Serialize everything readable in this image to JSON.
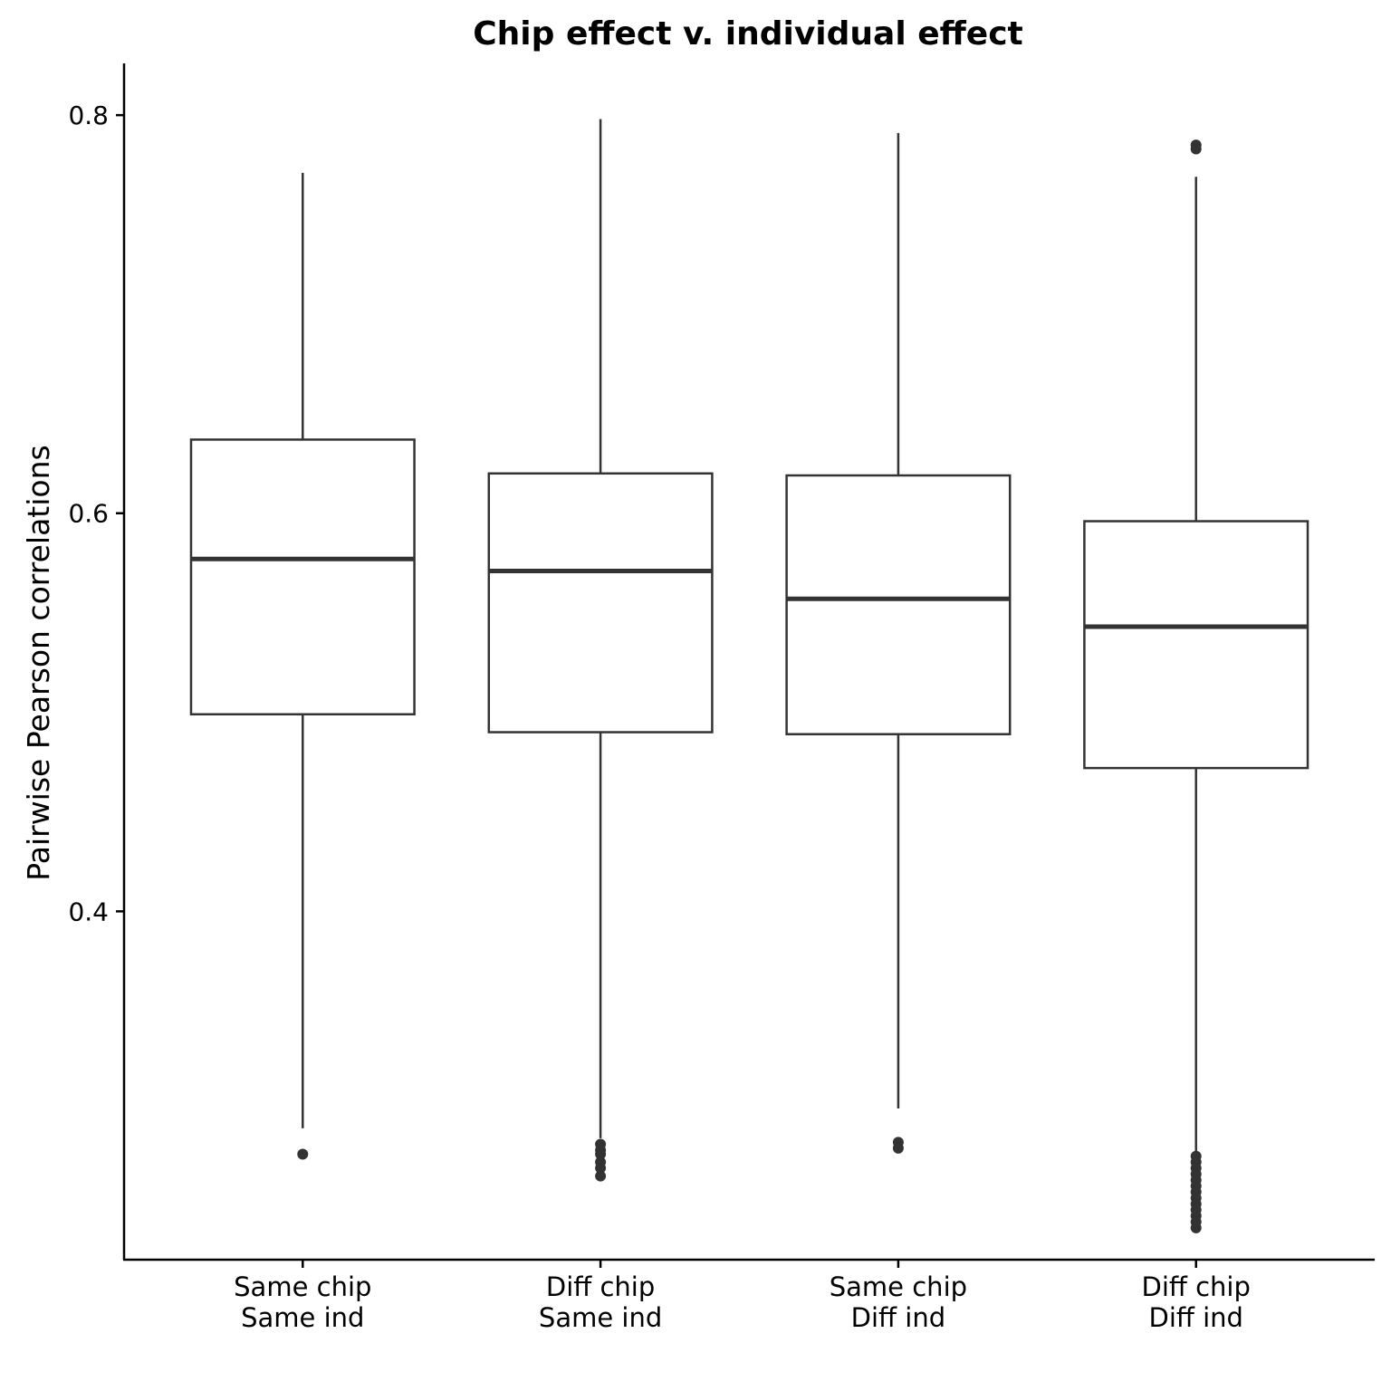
{
  "chart_data": {
    "type": "boxplot",
    "title": "Chip effect v. individual effect",
    "xlabel": "",
    "ylabel": "Pairwise Pearson correlations",
    "ylim": [
      0.225,
      0.826
    ],
    "yticks": [
      0.4,
      0.6,
      0.8
    ],
    "ytick_labels": [
      "0.4",
      "0.6",
      "0.8"
    ],
    "grid": false,
    "legend": "none",
    "colors": {
      "box_stroke": "#333333",
      "box_fill": "#ffffff",
      "axis": "#000000"
    },
    "groups": [
      {
        "label_line1": "Same chip",
        "label_line2": "Same ind",
        "whisker_low": 0.291,
        "q1": 0.499,
        "median": 0.577,
        "q3": 0.637,
        "whisker_high": 0.771,
        "outliers": [
          0.278
        ]
      },
      {
        "label_line1": "Diff chip",
        "label_line2": "Same ind",
        "whisker_low": 0.286,
        "q1": 0.49,
        "median": 0.571,
        "q3": 0.62,
        "whisker_high": 0.798,
        "outliers": [
          0.283,
          0.28,
          0.278,
          0.274,
          0.271,
          0.267
        ]
      },
      {
        "label_line1": "Same chip",
        "label_line2": "Diff ind",
        "whisker_low": 0.301,
        "q1": 0.489,
        "median": 0.557,
        "q3": 0.619,
        "whisker_high": 0.791,
        "outliers": [
          0.281,
          0.284
        ]
      },
      {
        "label_line1": "Diff chip",
        "label_line2": "Diff ind",
        "whisker_low": 0.278,
        "q1": 0.472,
        "median": 0.543,
        "q3": 0.596,
        "whisker_high": 0.769,
        "outliers": [
          0.785,
          0.783,
          0.277,
          0.274,
          0.271,
          0.268,
          0.265,
          0.262,
          0.259,
          0.256,
          0.253,
          0.25,
          0.247,
          0.244,
          0.241
        ]
      }
    ]
  }
}
